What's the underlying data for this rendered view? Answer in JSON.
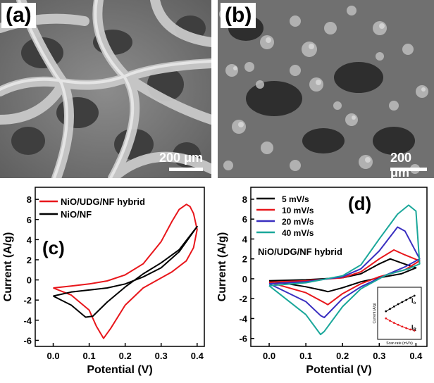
{
  "panels": {
    "a": {
      "label": "(a)",
      "scale_text": "200 μm"
    },
    "b": {
      "label": "(b)",
      "scale_text": "200 μm"
    }
  },
  "colors": {
    "red": "#e8161b",
    "black": "#000000",
    "blue": "#3a2fc0",
    "teal": "#1aa79a"
  },
  "chart_data": [
    {
      "panel_label": "(c)",
      "type": "line",
      "xlabel": "Potential (V)",
      "ylabel": "Current (A/g)",
      "xlim": [
        -0.05,
        0.42
      ],
      "ylim": [
        -6.6,
        9.2
      ],
      "xticks": [
        "0.0",
        "0.1",
        "0.2",
        "0.3",
        "0.4"
      ],
      "yticks": [
        "-6",
        "-4",
        "-2",
        "0",
        "2",
        "4",
        "6",
        "8"
      ],
      "legend_position": "top-left",
      "series": [
        {
          "name": "NiO/UDG/NF hybrid",
          "color": "red",
          "x": [
            0.0,
            0.05,
            0.1,
            0.15,
            0.2,
            0.25,
            0.3,
            0.33,
            0.35,
            0.37,
            0.38,
            0.39,
            0.4,
            0.39,
            0.37,
            0.33,
            0.3,
            0.25,
            0.2,
            0.16,
            0.14,
            0.12,
            0.1,
            0.05,
            0.0
          ],
          "y": [
            -0.8,
            -0.6,
            -0.4,
            -0.1,
            0.5,
            1.6,
            3.8,
            5.8,
            7.0,
            7.5,
            7.3,
            6.6,
            5.0,
            3.2,
            1.9,
            0.8,
            0.2,
            -0.8,
            -2.5,
            -4.8,
            -5.8,
            -4.6,
            -3.0,
            -1.5,
            -0.8
          ]
        },
        {
          "name": "NiO/NF",
          "color": "black",
          "x": [
            0.0,
            0.05,
            0.1,
            0.15,
            0.2,
            0.25,
            0.3,
            0.35,
            0.4,
            0.35,
            0.3,
            0.25,
            0.2,
            0.15,
            0.11,
            0.09,
            0.05,
            0.0
          ],
          "y": [
            -1.6,
            -1.2,
            -1.0,
            -0.8,
            -0.4,
            0.3,
            1.2,
            2.8,
            5.3,
            3.0,
            1.7,
            0.6,
            -0.7,
            -2.2,
            -3.6,
            -3.7,
            -2.5,
            -1.6
          ]
        }
      ]
    },
    {
      "panel_label": "(d)",
      "type": "line",
      "title": "NiO/UDG/NF hybrid",
      "xlabel": "Potential (V)",
      "ylabel": "Current (A/g)",
      "xlim": [
        -0.05,
        0.43
      ],
      "ylim": [
        -6.8,
        9.2
      ],
      "xticks": [
        "0.0",
        "0.1",
        "0.2",
        "0.3",
        "0.4"
      ],
      "yticks": [
        "-6",
        "-4",
        "-2",
        "0",
        "2",
        "4",
        "6",
        "8"
      ],
      "legend_position": "top-left",
      "series": [
        {
          "name": "5 mV/s",
          "color": "black",
          "x": [
            0.0,
            0.1,
            0.2,
            0.25,
            0.3,
            0.33,
            0.36,
            0.4,
            0.36,
            0.3,
            0.25,
            0.2,
            0.16,
            0.15,
            0.1,
            0.0
          ],
          "y": [
            -0.2,
            -0.1,
            0.1,
            0.5,
            1.5,
            2.0,
            1.6,
            1.1,
            0.5,
            0.1,
            -0.3,
            -0.9,
            -1.3,
            -1.2,
            -0.8,
            -0.2
          ]
        },
        {
          "name": "10 mV/s",
          "color": "red",
          "x": [
            0.0,
            0.1,
            0.2,
            0.25,
            0.3,
            0.34,
            0.37,
            0.41,
            0.37,
            0.3,
            0.25,
            0.2,
            0.16,
            0.15,
            0.1,
            0.0
          ],
          "y": [
            -0.35,
            -0.2,
            0.1,
            0.7,
            2.0,
            2.9,
            2.4,
            1.8,
            0.9,
            0.2,
            -0.5,
            -1.5,
            -2.6,
            -2.4,
            -1.4,
            -0.35
          ]
        },
        {
          "name": "20 mV/s",
          "color": "blue",
          "x": [
            0.0,
            0.1,
            0.2,
            0.25,
            0.3,
            0.35,
            0.37,
            0.41,
            0.37,
            0.32,
            0.25,
            0.2,
            0.15,
            0.14,
            0.1,
            0.0
          ],
          "y": [
            -0.5,
            -0.3,
            0.2,
            1.0,
            2.8,
            5.2,
            4.8,
            2.0,
            1.2,
            0.4,
            -0.8,
            -2.0,
            -3.9,
            -3.7,
            -2.3,
            -0.5
          ]
        },
        {
          "name": "40 mV/s",
          "color": "teal",
          "x": [
            0.0,
            0.1,
            0.2,
            0.25,
            0.3,
            0.35,
            0.38,
            0.4,
            0.41,
            0.38,
            0.32,
            0.25,
            0.2,
            0.15,
            0.14,
            0.1,
            0.0
          ],
          "y": [
            -0.7,
            -0.4,
            0.3,
            1.4,
            4.0,
            6.5,
            7.4,
            6.8,
            1.5,
            1.0,
            0.4,
            -1.0,
            -2.8,
            -5.3,
            -5.6,
            -3.6,
            -0.7
          ]
        }
      ],
      "inset": {
        "type": "scatter",
        "xlabel": "Scan rate (mV/s)",
        "ylabel": "Current (A/g)",
        "labels": [
          "I",
          "I"
        ],
        "label_subscripts": [
          "o",
          "R"
        ],
        "series": [
          {
            "color": "black",
            "x": [
              5,
              10,
              15,
              20,
              25,
              30,
              35,
              40
            ],
            "y": [
              1.5,
              2.4,
              3.3,
              4.2,
              5.0,
              5.8,
              6.6,
              7.4
            ]
          },
          {
            "color": "red",
            "x": [
              5,
              10,
              15,
              20,
              25,
              30,
              35,
              40
            ],
            "y": [
              -1.2,
              -2.1,
              -2.9,
              -3.6,
              -4.3,
              -4.9,
              -5.4,
              -5.8
            ]
          }
        ]
      }
    }
  ]
}
